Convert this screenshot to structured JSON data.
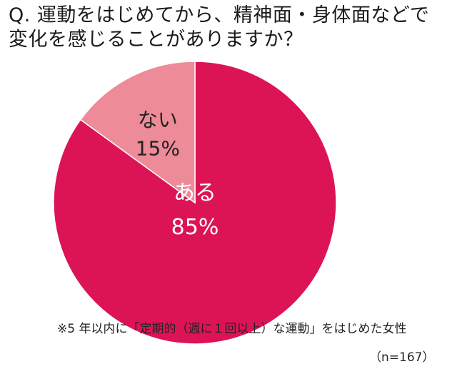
{
  "title": {
    "line1": "Q. 運動をはじめてから、精神面・身体面などで",
    "line2": "変化を感じることがありますか？"
  },
  "footnote": "※5 年以内に「定期的（週に１回以上）な運動」をはじめた女性",
  "sample_size": "（n=167）",
  "colors": {
    "aru": "#dc1456",
    "nai": "#ee8b98",
    "label_text_light": "#ffffff",
    "label_text_dark": "#222222",
    "slice_border": "#ffffff"
  },
  "chart_data": {
    "type": "pie",
    "title": "Q. 運動をはじめてから、精神面・身体面などで変化を感じることがありますか？",
    "start": "12 o'clock",
    "direction": "clockwise",
    "legend": "none",
    "slices": [
      {
        "label": "ある",
        "value": 85,
        "value_label": "85%",
        "color": "#dc1456"
      },
      {
        "label": "ない",
        "value": 15,
        "value_label": "15%",
        "color": "#ee8b98"
      }
    ]
  }
}
